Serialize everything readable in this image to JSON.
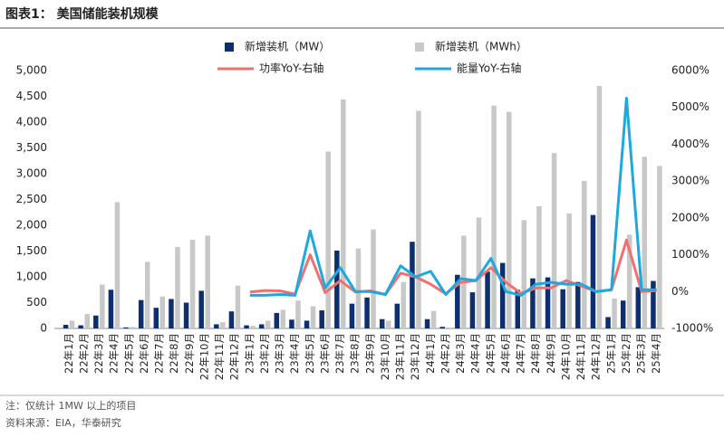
{
  "chart_data": {
    "type": "bar_line",
    "title": "图表1：  美国储能装机规模",
    "note": "注：仅统计 1MW 以上的项目",
    "source": "资料来源：EIA，华泰研究",
    "categories": [
      "22年1月",
      "22年2月",
      "22年3月",
      "22年4月",
      "22年5月",
      "22年6月",
      "22年7月",
      "22年8月",
      "22年9月",
      "22年10月",
      "22年11月",
      "22年12月",
      "23年1月",
      "23年2月",
      "23年3月",
      "23年4月",
      "23年5月",
      "23年6月",
      "23年7月",
      "23年8月",
      "23年9月",
      "23年10月",
      "23年11月",
      "23年12月",
      "24年1月",
      "24年2月",
      "24年3月",
      "24年4月",
      "24年5月",
      "24年6月",
      "24年7月",
      "24年8月",
      "24年9月",
      "24年10月",
      "24年11月",
      "24年12月",
      "25年1月",
      "25年2月",
      "25年3月",
      "25年4月"
    ],
    "series": [
      {
        "name": "新增装机（MW）",
        "type": "bar",
        "color": "#0d2f6e",
        "values": [
          70,
          60,
          250,
          750,
          20,
          550,
          400,
          570,
          500,
          730,
          80,
          330,
          60,
          80,
          300,
          170,
          150,
          350,
          1510,
          480,
          600,
          180,
          480,
          1680,
          180,
          30,
          1040,
          700,
          1100,
          1270,
          750,
          970,
          990,
          760,
          900,
          2200,
          220,
          540,
          800,
          920
        ]
      },
      {
        "name": "新增装机（MWh）",
        "type": "bar",
        "color": "#c8c8c8",
        "values": [
          150,
          280,
          850,
          2450,
          30,
          1290,
          620,
          1580,
          1720,
          1800,
          120,
          830,
          50,
          150,
          360,
          540,
          430,
          3430,
          4440,
          1550,
          1920,
          150,
          900,
          4220,
          340,
          20,
          1800,
          2150,
          4320,
          4200,
          2100,
          2370,
          3400,
          2230,
          2860,
          4700,
          580,
          1820,
          3330,
          3150
        ]
      },
      {
        "name": "功率YoY-右轴",
        "type": "line",
        "axis": "y2",
        "color": "#f07070",
        "values": [
          null,
          null,
          null,
          null,
          null,
          null,
          null,
          null,
          null,
          null,
          null,
          null,
          -10,
          30,
          20,
          -70,
          1000,
          -30,
          300,
          -10,
          20,
          -80,
          500,
          400,
          200,
          -60,
          250,
          300,
          650,
          250,
          -50,
          100,
          100,
          300,
          150,
          0,
          50,
          1400,
          0,
          30
        ]
      },
      {
        "name": "能量YoY-右轴",
        "type": "line",
        "axis": "y2",
        "color": "#1ea8e0",
        "values": [
          null,
          null,
          null,
          null,
          null,
          null,
          null,
          null,
          null,
          null,
          null,
          null,
          -100,
          -100,
          -80,
          -100,
          1650,
          100,
          650,
          0,
          0,
          -80,
          700,
          400,
          550,
          -80,
          350,
          300,
          900,
          0,
          -100,
          200,
          250,
          200,
          200,
          0,
          50,
          5250,
          50,
          50
        ]
      }
    ],
    "ylim": [
      0,
      5000
    ],
    "yticks": [
      0,
      {
        "value": 500,
        "label": "500"
      },
      {
        "value": 1000,
        "label": "1,000"
      },
      {
        "value": 1500,
        "label": "1,500"
      },
      {
        "value": 2000,
        "label": "2,000"
      },
      {
        "value": 2500,
        "label": "2,500"
      },
      {
        "value": 3000,
        "label": "3,000"
      },
      {
        "value": 3500,
        "label": "3,500"
      },
      {
        "value": 4000,
        "label": "4,000"
      },
      {
        "value": 4500,
        "label": "4,500"
      },
      {
        "value": 5000,
        "label": "5,000"
      }
    ],
    "y2lim": [
      -1000,
      6000
    ],
    "y2ticks": [
      {
        "value": -1000,
        "label": "-1000%"
      },
      {
        "value": 0,
        "label": "0%"
      },
      {
        "value": 1000,
        "label": "1000%"
      },
      {
        "value": 2000,
        "label": "2000%"
      },
      {
        "value": 3000,
        "label": "3000%"
      },
      {
        "value": 4000,
        "label": "4000%"
      },
      {
        "value": 5000,
        "label": "5000%"
      },
      {
        "value": 6000,
        "label": "6000%"
      }
    ]
  }
}
